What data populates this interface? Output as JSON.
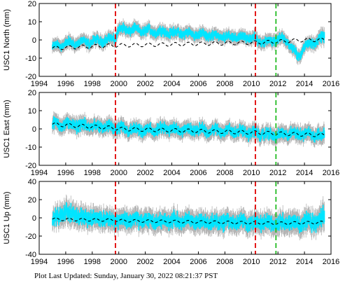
{
  "footer": {
    "updated": "Plot Last Updated:   Sunday, January 30, 2022 08:21:37 PST"
  },
  "colors": {
    "errorbar": "#b4b4b4",
    "points": "#00e5ff",
    "model": "#000000",
    "event_red": "#e00000",
    "event_green": "#22bb22"
  },
  "chart_data": [
    {
      "type": "scatter",
      "ylabel": "USC1 North (mm)",
      "xlim": [
        1994,
        2016
      ],
      "ylim": [
        -20,
        20
      ],
      "xticks": [
        1994,
        1996,
        1998,
        2000,
        2002,
        2004,
        2006,
        2008,
        2010,
        2012,
        2014,
        2016
      ],
      "yticks": [
        -20,
        -10,
        0,
        10,
        20
      ],
      "grid": false,
      "series": [
        {
          "kind": "observations_with_errorbars",
          "x": [
            1995.0,
            1996.0,
            1997.0,
            1998.0,
            1999.0,
            1999.7,
            2000.0,
            2001.0,
            2002.0,
            2003.0,
            2004.0,
            2005.0,
            2006.0,
            2007.0,
            2008.0,
            2009.0,
            2010.0,
            2010.3,
            2011.0,
            2011.8,
            2012.5,
            2013.0,
            2013.5,
            2014.0,
            2014.8,
            2015.5
          ],
          "y": [
            -4,
            -2,
            -1.5,
            -1,
            0,
            1,
            6,
            5.5,
            5,
            4.5,
            4,
            3.5,
            3,
            2.5,
            2,
            1.5,
            1,
            0,
            -1,
            0,
            1,
            -4,
            -9,
            -4,
            -1,
            2
          ],
          "err": [
            4,
            4,
            4,
            4,
            4,
            4,
            4,
            4,
            4,
            4,
            4,
            4,
            4,
            4,
            4,
            4,
            4,
            4,
            4,
            4,
            4,
            4,
            4,
            4,
            4,
            5
          ]
        },
        {
          "kind": "model",
          "x": [
            1995.0,
            1999.7,
            2000.0,
            2010.3,
            2011.8,
            2014.0,
            2015.5
          ],
          "y": [
            -4.5,
            -3,
            -3,
            -1.5,
            -1,
            0,
            0
          ]
        }
      ],
      "event_lines": [
        {
          "x": 1999.75,
          "color": "red"
        },
        {
          "x": 2010.3,
          "color": "red"
        },
        {
          "x": 2011.85,
          "color": "green"
        }
      ],
      "seasonal_amplitude": 1
    },
    {
      "type": "scatter",
      "ylabel": "USC1 East (mm)",
      "xlim": [
        1994,
        2016
      ],
      "ylim": [
        -20,
        20
      ],
      "xticks": [
        1994,
        1996,
        1998,
        2000,
        2002,
        2004,
        2006,
        2008,
        2010,
        2012,
        2014,
        2016
      ],
      "yticks": [
        -20,
        -10,
        0,
        10,
        20
      ],
      "grid": false,
      "series": [
        {
          "kind": "observations_with_errorbars",
          "x": [
            1995.0,
            1996.0,
            1997.0,
            1998.0,
            1999.0,
            1999.7,
            2000.0,
            2001.0,
            2002.0,
            2003.0,
            2004.0,
            2005.0,
            2006.0,
            2007.0,
            2008.0,
            2009.0,
            2010.0,
            2010.3,
            2011.0,
            2011.8,
            2012.5,
            2013.0,
            2014.0,
            2015.0,
            2015.5
          ],
          "y": [
            2.5,
            2.5,
            2,
            1.5,
            1,
            0.5,
            0,
            -0.5,
            -1,
            -0.5,
            0,
            -0.5,
            -0.5,
            -1,
            -1,
            -1.5,
            -2,
            -2.5,
            -3,
            -3.5,
            -3,
            -2.5,
            -2.5,
            -3,
            -4
          ],
          "err": [
            5,
            5,
            5,
            5,
            5,
            5,
            5,
            5,
            5,
            5,
            5,
            5,
            5,
            5,
            5,
            5,
            5,
            5,
            5,
            5,
            5,
            5,
            5,
            5,
            6
          ]
        },
        {
          "kind": "model",
          "x": [
            1995.0,
            1999.7,
            2000.0,
            2010.3,
            2011.8,
            2015.5
          ],
          "y": [
            2.5,
            0.5,
            0,
            -2,
            -2.5,
            -3.5
          ]
        }
      ],
      "event_lines": [
        {
          "x": 1999.75,
          "color": "red"
        },
        {
          "x": 2010.3,
          "color": "red"
        },
        {
          "x": 2011.85,
          "color": "green"
        }
      ],
      "seasonal_amplitude": 1
    },
    {
      "type": "scatter",
      "ylabel": "USC1 Up (mm)",
      "xlim": [
        1994,
        2016
      ],
      "ylim": [
        -40,
        40
      ],
      "xticks": [
        1994,
        1996,
        1998,
        2000,
        2002,
        2004,
        2006,
        2008,
        2010,
        2012,
        2014,
        2016
      ],
      "yticks": [
        -40,
        -20,
        0,
        20,
        40
      ],
      "grid": false,
      "series": [
        {
          "kind": "observations_with_errorbars",
          "x": [
            1995.0,
            1996.0,
            1997.0,
            1998.0,
            1999.0,
            1999.7,
            2000.0,
            2001.0,
            2002.0,
            2003.0,
            2004.0,
            2005.0,
            2006.0,
            2007.0,
            2008.0,
            2009.0,
            2010.0,
            2010.3,
            2011.0,
            2011.8,
            2012.5,
            2013.0,
            2014.0,
            2015.0,
            2015.5
          ],
          "y": [
            -2,
            6,
            2,
            -1,
            0,
            -3,
            -2,
            -2,
            -3,
            -4,
            -3,
            -4,
            -4,
            -5,
            -4,
            -5,
            -5,
            -6,
            -5,
            -6,
            -4,
            -6,
            -5,
            -5,
            0
          ],
          "err": [
            12,
            15,
            14,
            13,
            13,
            13,
            13,
            13,
            13,
            13,
            13,
            13,
            13,
            13,
            13,
            13,
            13,
            13,
            13,
            13,
            14,
            14,
            14,
            14,
            18
          ]
        },
        {
          "kind": "model",
          "x": [
            1995.0,
            1999.7,
            2000.0,
            2010.3,
            2011.8,
            2015.5
          ],
          "y": [
            -1.5,
            -2.5,
            -3,
            -5.5,
            -6,
            -5
          ]
        }
      ],
      "event_lines": [
        {
          "x": 1999.75,
          "color": "red"
        },
        {
          "x": 2010.3,
          "color": "red"
        },
        {
          "x": 2011.85,
          "color": "green"
        }
      ],
      "seasonal_amplitude": 1.5
    }
  ]
}
